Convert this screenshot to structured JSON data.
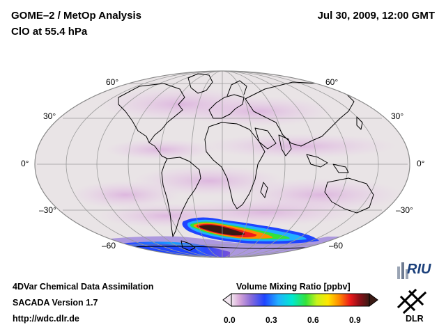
{
  "header": {
    "title": "GOME–2 / MetOp Analysis",
    "subtitle": "ClO at 55.4 hPa",
    "datetime": "Jul 30, 2009, 12:00 GMT"
  },
  "map": {
    "lat_labels_left": [
      "60°",
      "30°",
      "0°",
      "–30°",
      "–60"
    ],
    "lat_labels_right": [
      "60°",
      "30°",
      "0°",
      "–30°",
      "–60"
    ],
    "colors": {
      "ocean": "#e8e5e5",
      "outline": "#000000"
    }
  },
  "footer": {
    "line1": "4DVar Chemical Data Assimilation",
    "line2": "SACADA Version 1.7",
    "line3": "http://wdc.dlr.de"
  },
  "colorbar": {
    "title": "Volume Mixing Ratio [ppbv]",
    "ticks": [
      "0.0",
      "0.3",
      "0.6",
      "0.9"
    ],
    "range": [
      0.0,
      1.0
    ]
  },
  "logos": {
    "riu": "RIU",
    "dlr": "DLR"
  }
}
